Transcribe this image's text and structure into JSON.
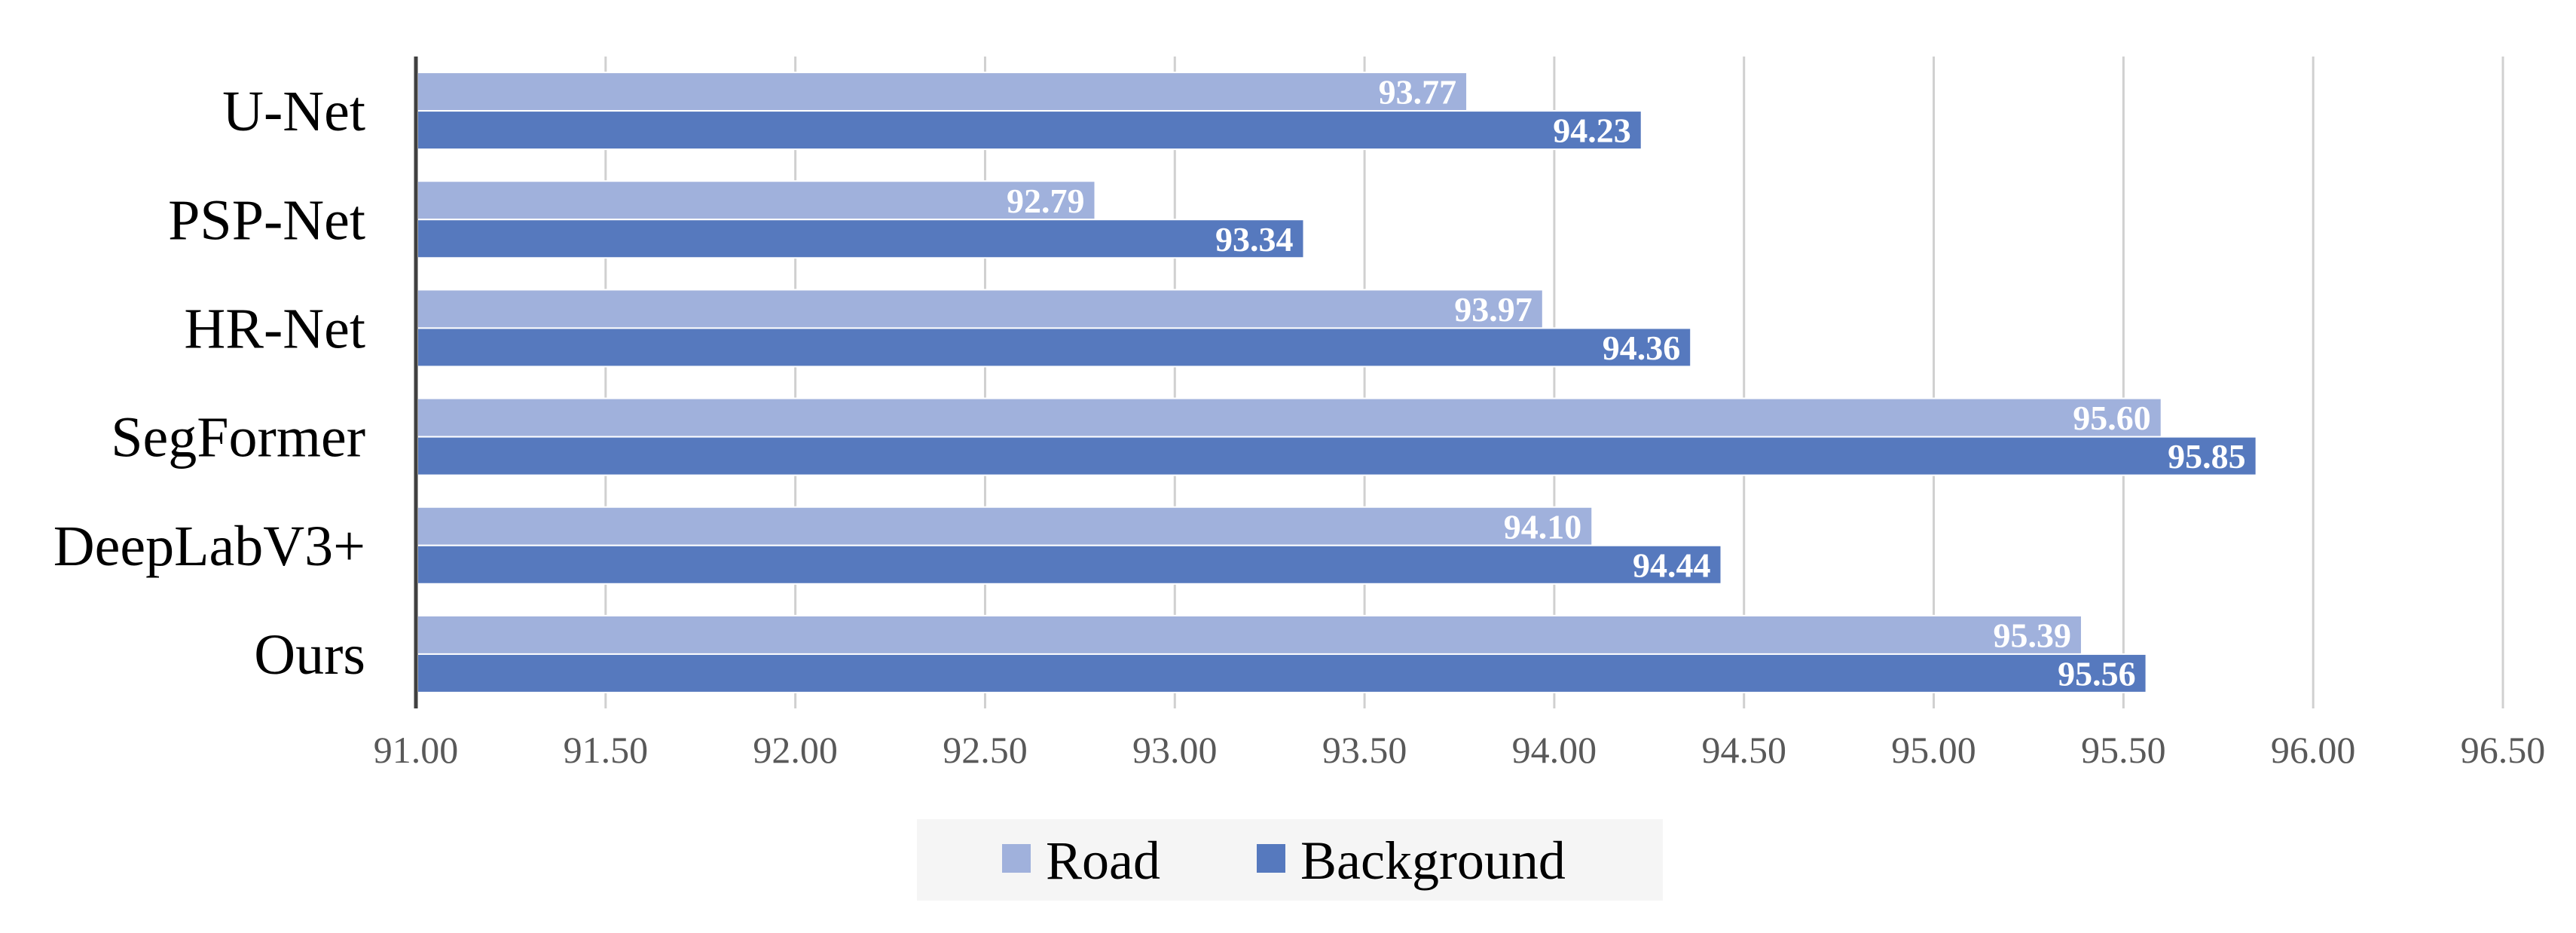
{
  "chart_data": {
    "type": "bar",
    "orientation": "horizontal",
    "categories": [
      "U-Net",
      "PSP-Net",
      "HR-Net",
      "SegFormer",
      "DeepLabV3+",
      "Ours"
    ],
    "series": [
      {
        "name": "Road",
        "color": "#A0B1DC",
        "values": [
          93.77,
          92.79,
          93.97,
          95.6,
          94.1,
          95.39
        ]
      },
      {
        "name": "Background",
        "color": "#5679BE",
        "values": [
          94.23,
          93.34,
          94.36,
          95.85,
          94.44,
          95.56
        ]
      }
    ],
    "xlim": [
      91.0,
      96.5
    ],
    "xticks": [
      "91.00",
      "91.50",
      "92.00",
      "92.50",
      "93.00",
      "93.50",
      "94.00",
      "94.50",
      "95.00",
      "95.50",
      "96.00",
      "96.50"
    ],
    "title": "",
    "xlabel": "",
    "ylabel": "",
    "grid": "vertical",
    "legend": "bottom-center",
    "data_labels": true
  }
}
